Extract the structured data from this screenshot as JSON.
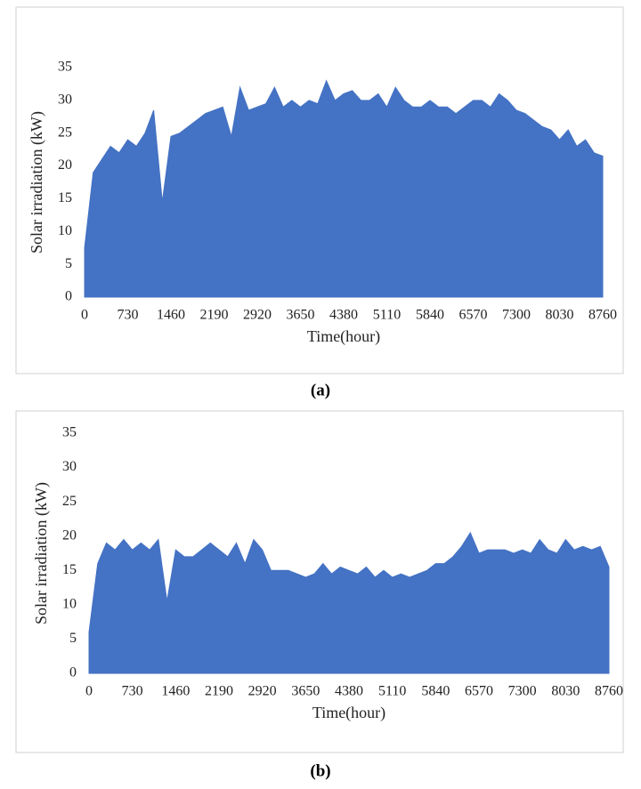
{
  "chart_data": [
    {
      "type": "area",
      "caption": "(a)",
      "x_label": "Time(hour)",
      "y_label": "Solar irradiation (kW)",
      "color": "#4472c4",
      "grid": false,
      "xlim": [
        0,
        8760
      ],
      "ylim": [
        0,
        35
      ],
      "xticks": [
        0,
        730,
        1460,
        2190,
        2920,
        3650,
        4380,
        5110,
        5840,
        6570,
        7300,
        8030,
        8760
      ],
      "yticks": [
        0,
        5,
        10,
        15,
        20,
        25,
        30,
        35
      ],
      "x": [
        0,
        146,
        292,
        438,
        584,
        730,
        876,
        1022,
        1168,
        1314,
        1460,
        1606,
        1752,
        1898,
        2044,
        2190,
        2336,
        2482,
        2628,
        2774,
        2920,
        3066,
        3212,
        3358,
        3504,
        3650,
        3796,
        3942,
        4088,
        4234,
        4380,
        4526,
        4672,
        4818,
        4964,
        5110,
        5256,
        5402,
        5548,
        5694,
        5840,
        5986,
        6132,
        6278,
        6424,
        6570,
        6716,
        6862,
        7008,
        7154,
        7300,
        7446,
        7592,
        7738,
        7884,
        8030,
        8176,
        8322,
        8468,
        8614,
        8760
      ],
      "values": [
        7.5,
        19,
        21,
        23,
        22,
        24,
        23,
        25,
        28.5,
        14.5,
        24.5,
        25,
        26,
        27,
        28,
        28.5,
        29,
        24.5,
        32,
        28.5,
        29,
        29.5,
        32,
        29,
        30,
        29,
        30,
        29.5,
        33,
        30,
        31,
        31.5,
        30,
        30,
        31,
        29,
        32,
        30,
        29,
        29,
        30,
        29,
        29,
        28,
        29,
        30,
        30,
        29,
        31,
        30,
        28.5,
        28,
        27,
        26,
        25.5,
        24,
        25.5,
        23,
        24,
        22,
        21.5
      ]
    },
    {
      "type": "area",
      "caption": "(b)",
      "x_label": "Time(hour)",
      "y_label": "Solar irradiation (kW)",
      "color": "#4472c4",
      "grid": false,
      "xlim": [
        0,
        8760
      ],
      "ylim": [
        0,
        35
      ],
      "xticks": [
        0,
        730,
        1460,
        2190,
        2920,
        3650,
        4380,
        5110,
        5840,
        6570,
        7300,
        8030,
        8760
      ],
      "yticks": [
        0,
        5,
        10,
        15,
        20,
        25,
        30,
        35
      ],
      "x": [
        0,
        146,
        292,
        438,
        584,
        730,
        876,
        1022,
        1168,
        1314,
        1460,
        1606,
        1752,
        1898,
        2044,
        2190,
        2336,
        2482,
        2628,
        2774,
        2920,
        3066,
        3212,
        3358,
        3504,
        3650,
        3796,
        3942,
        4088,
        4234,
        4380,
        4526,
        4672,
        4818,
        4964,
        5110,
        5256,
        5402,
        5548,
        5694,
        5840,
        5986,
        6132,
        6278,
        6424,
        6570,
        6716,
        6862,
        7008,
        7154,
        7300,
        7446,
        7592,
        7738,
        7884,
        8030,
        8176,
        8322,
        8468,
        8614,
        8760
      ],
      "values": [
        6,
        16,
        19,
        18,
        19.5,
        18,
        19,
        18,
        19.5,
        10.5,
        18,
        17,
        17,
        18,
        19,
        18,
        17,
        19,
        16,
        19.5,
        18,
        15,
        15,
        15,
        14.5,
        14,
        14.5,
        16,
        14.5,
        15.5,
        15,
        14.5,
        15.5,
        14,
        15,
        14,
        14.5,
        14,
        14.5,
        15,
        16,
        16,
        17,
        18.5,
        20.5,
        17.5,
        18,
        18,
        18,
        17.5,
        18,
        17.5,
        19.5,
        18,
        17.5,
        19.5,
        18,
        18.5,
        18,
        18.5,
        15.5
      ]
    }
  ]
}
